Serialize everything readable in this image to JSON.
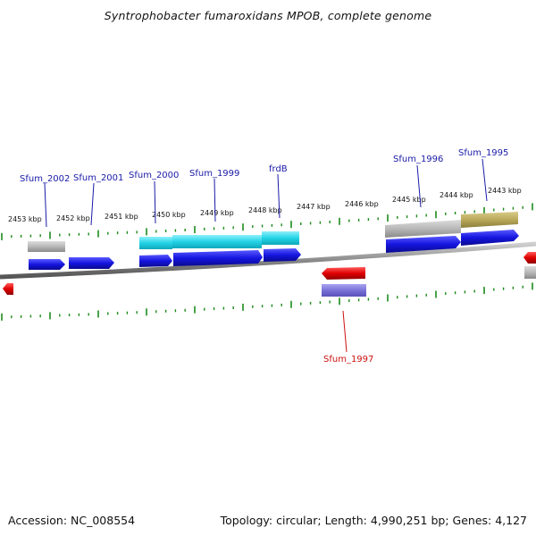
{
  "title": "Syntrophobacter fumaroxidans MPOB, complete genome",
  "footer": {
    "accession": "Accession: NC_008554",
    "summary": "Topology: circular; Length: 4,990,251 bp; Genes: 4,127"
  },
  "colors": {
    "forward_label": "#1a1aa8",
    "reverse_label": "#cc1010",
    "cds_blue": "#1515e0",
    "cds_red": "#e00000",
    "rna_cyan": "#22d3e6",
    "gene_gray": "#b8b8b8",
    "gene_purple": "#7a72d8",
    "gene_olive": "#b8a95a",
    "backbone": "#8a8a8a",
    "tick_green": "#1b8a1b"
  },
  "scale": {
    "unit": "kbp",
    "labels": [
      "2453 kbp",
      "2452 kbp",
      "2451 kbp",
      "2450 kbp",
      "2449 kbp",
      "2448 kbp",
      "2447 kbp",
      "2446 kbp",
      "2445 kbp",
      "2444 kbp",
      "2443 kbp"
    ]
  },
  "gene_labels": {
    "forward": [
      "Sfum_2002",
      "Sfum_2001",
      "Sfum_2000",
      "Sfum_1999",
      "frdB",
      "Sfum_1996",
      "Sfum_1995"
    ],
    "reverse": [
      "Sfum_1997"
    ]
  }
}
